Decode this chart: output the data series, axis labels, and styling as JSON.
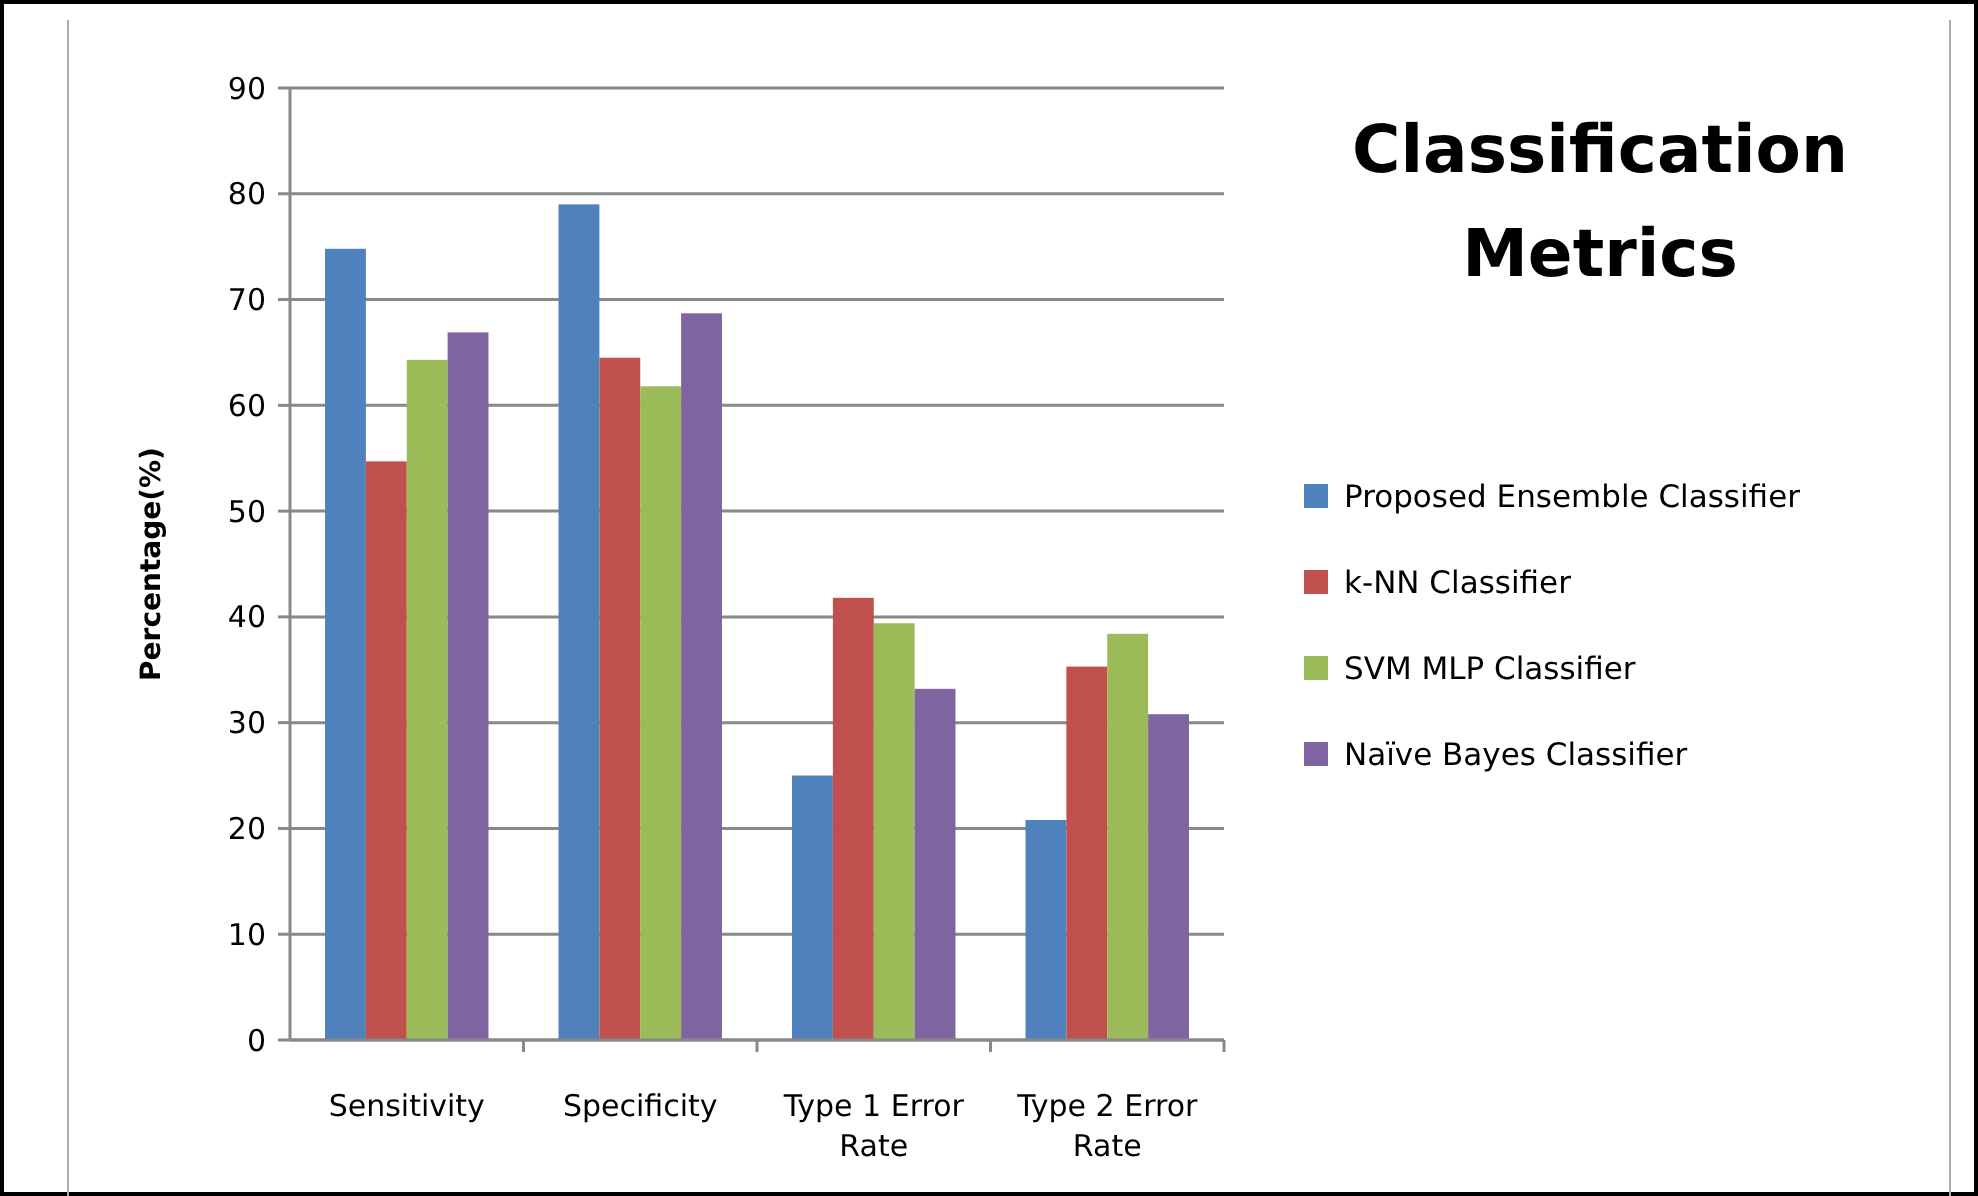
{
  "chart_data": {
    "type": "bar",
    "title": "Classification Metrics",
    "ylabel": "Percentage(%)",
    "categories": [
      "Sensitivity",
      "Specificity",
      "Type 1 Error Rate",
      "Type 2 Error Rate"
    ],
    "series": [
      {
        "name": "Proposed Ensemble Classifier",
        "color": "#4f81bd",
        "values": [
          74.8,
          79.0,
          25.0,
          20.8
        ]
      },
      {
        "name": "k-NN Classifier",
        "color": "#c0504d",
        "values": [
          54.7,
          64.5,
          41.8,
          35.3
        ]
      },
      {
        "name": "SVM MLP Classifier",
        "color": "#9bbb59",
        "values": [
          64.3,
          61.8,
          39.4,
          38.4
        ]
      },
      {
        "name": "Naïve Bayes Classifier",
        "color": "#8064a2",
        "values": [
          66.9,
          68.7,
          33.2,
          30.8
        ]
      }
    ],
    "ylim": [
      0,
      90
    ],
    "yticks": [
      0,
      10,
      20,
      30,
      40,
      50,
      60,
      70,
      80,
      90
    ],
    "grid": "y",
    "legend": "right"
  }
}
